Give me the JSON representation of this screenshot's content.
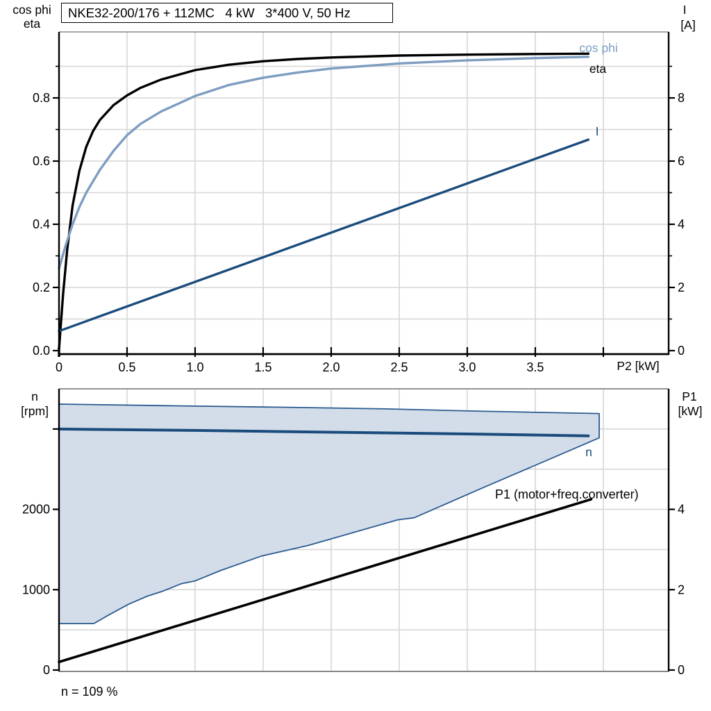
{
  "title": "NKE32-200/176 + 112MC   4 kW   3*400 V, 50 Hz",
  "colors": {
    "eta_line": "#000000",
    "cosphi_line": "#7d9dc1",
    "current_line": "#1b4b7d",
    "speed_line": "#1b4b7d",
    "p1_line": "#000000",
    "area_fill": "#d3dde9",
    "area_border": "#2a5a8f",
    "gridline": "#d6d6d6",
    "frame_gray": "#858585"
  },
  "axis_headers": {
    "top_left_1": "cos phi",
    "top_left_2": "eta",
    "top_right_1": "I",
    "top_right_2": "[A]",
    "bottom_left_1": "n",
    "bottom_left_2": "[rpm]",
    "bottom_right_1": "P1",
    "bottom_right_2": "[kW]"
  },
  "curve_labels": {
    "cosphi": "cos phi",
    "eta": "eta",
    "current": "I",
    "speed": "n",
    "p1": "P1 (motor+freq.converter)"
  },
  "annotation": "n = 109 %",
  "x_axis_title": "P2 [kW]",
  "chart_data": [
    {
      "type": "line",
      "title": "Motor efficiency, power factor and current vs shaft power",
      "x_axis": {
        "label": "P2 [kW]",
        "range": [
          0,
          4.48
        ],
        "ticks": [
          [
            0,
            "0"
          ],
          [
            0.5,
            "0.5"
          ],
          [
            1,
            "1.0"
          ],
          [
            1.5,
            "1.5"
          ],
          [
            2,
            "2.0"
          ],
          [
            2.5,
            "2.5"
          ],
          [
            3,
            "3.0"
          ],
          [
            3.5,
            "3.5"
          ],
          [
            4,
            ""
          ]
        ],
        "gridlines": [
          0.5,
          1,
          1.5,
          2,
          2.5,
          3,
          3.5,
          4
        ]
      },
      "y_left": {
        "label": "cos phi / eta",
        "range": [
          0,
          1.0
        ],
        "ticks": [
          [
            0,
            "0.0"
          ],
          [
            0.2,
            "0.2"
          ],
          [
            0.4,
            "0.4"
          ],
          [
            0.6,
            "0.6"
          ],
          [
            0.8,
            "0.8"
          ]
        ],
        "minor_ticks": [
          0.1,
          0.3,
          0.5,
          0.7,
          0.9
        ],
        "gridlines": [
          0.1,
          0.2,
          0.3,
          0.4,
          0.5,
          0.6,
          0.7,
          0.8,
          0.9
        ]
      },
      "y_right": {
        "label": "I [A]",
        "range": [
          0,
          10
        ],
        "ticks": [
          [
            0,
            "0"
          ],
          [
            2,
            "2"
          ],
          [
            4,
            "4"
          ],
          [
            6,
            "6"
          ],
          [
            8,
            "8"
          ]
        ],
        "minor_ticks": [
          1,
          3,
          5,
          7,
          9
        ]
      },
      "series": [
        {
          "name": "eta",
          "axis": "left",
          "color": "#000000",
          "width": 3.4,
          "points": [
            [
              0,
              0.005
            ],
            [
              0.03,
              0.18
            ],
            [
              0.06,
              0.32
            ],
            [
              0.1,
              0.46
            ],
            [
              0.15,
              0.57
            ],
            [
              0.2,
              0.645
            ],
            [
              0.25,
              0.695
            ],
            [
              0.3,
              0.73
            ],
            [
              0.4,
              0.777
            ],
            [
              0.5,
              0.808
            ],
            [
              0.6,
              0.832
            ],
            [
              0.75,
              0.858
            ],
            [
              1.0,
              0.888
            ],
            [
              1.25,
              0.905
            ],
            [
              1.5,
              0.916
            ],
            [
              1.75,
              0.923
            ],
            [
              2.0,
              0.928
            ],
            [
              2.5,
              0.934
            ],
            [
              3.0,
              0.937
            ],
            [
              3.5,
              0.939
            ],
            [
              3.89,
              0.94
            ]
          ]
        },
        {
          "name": "cos phi",
          "axis": "left",
          "color": "#7d9dc1",
          "width": 3.4,
          "points": [
            [
              0,
              0.26
            ],
            [
              0.05,
              0.335
            ],
            [
              0.1,
              0.4
            ],
            [
              0.15,
              0.455
            ],
            [
              0.2,
              0.5
            ],
            [
              0.3,
              0.572
            ],
            [
              0.4,
              0.632
            ],
            [
              0.5,
              0.682
            ],
            [
              0.6,
              0.718
            ],
            [
              0.75,
              0.757
            ],
            [
              1.0,
              0.806
            ],
            [
              1.25,
              0.841
            ],
            [
              1.5,
              0.864
            ],
            [
              1.75,
              0.88
            ],
            [
              2.0,
              0.893
            ],
            [
              2.5,
              0.909
            ],
            [
              3.0,
              0.919
            ],
            [
              3.5,
              0.926
            ],
            [
              3.89,
              0.93
            ]
          ]
        },
        {
          "name": "I",
          "axis": "right",
          "color": "#1b4b7d",
          "width": 3.4,
          "points": [
            [
              0,
              0.62
            ],
            [
              3.89,
              6.68
            ]
          ]
        }
      ]
    },
    {
      "type": "line+area",
      "title": "Speed range and input power vs shaft power",
      "x_axis": {
        "label": "",
        "range": [
          0,
          4.48
        ],
        "ticks": [],
        "gridlines": [
          0.5,
          1,
          1.5,
          2,
          2.5,
          3,
          3.5,
          4
        ]
      },
      "y_left": {
        "label": "n [rpm]",
        "range": [
          0,
          3500
        ],
        "ticks": [
          [
            0,
            "0"
          ],
          [
            1000,
            "1000"
          ],
          [
            2000,
            "2000"
          ],
          [
            3000,
            ""
          ]
        ],
        "gridlines": [
          500,
          1000,
          1500,
          2000,
          2500,
          3000,
          3500
        ]
      },
      "y_right": {
        "label": "P1 [kW]",
        "range": [
          0,
          7
        ],
        "ticks": [
          [
            0,
            "0"
          ],
          [
            2,
            "2"
          ],
          [
            4,
            "4"
          ]
        ]
      },
      "area": {
        "name": "speed-range-envelope",
        "axis": "left",
        "fill": "#d3dde9",
        "border": "#2a5a8f",
        "border_width": 1.8,
        "points": [
          [
            0,
            3310
          ],
          [
            0.8,
            3290
          ],
          [
            1.6,
            3272
          ],
          [
            2.4,
            3250
          ],
          [
            3.13,
            3220
          ],
          [
            3.97,
            3192
          ],
          [
            3.97,
            2890
          ],
          [
            3.13,
            2280
          ],
          [
            2.61,
            1895
          ],
          [
            2.49,
            1870
          ],
          [
            1.83,
            1550
          ],
          [
            1.49,
            1420
          ],
          [
            1.19,
            1240
          ],
          [
            1.0,
            1110
          ],
          [
            0.9,
            1075
          ],
          [
            0.76,
            980
          ],
          [
            0.65,
            920
          ],
          [
            0.51,
            818
          ],
          [
            0.37,
            690
          ],
          [
            0.255,
            578
          ],
          [
            0,
            578
          ]
        ]
      },
      "series": [
        {
          "name": "n",
          "axis": "left",
          "color": "#1b4b7d",
          "width": 4,
          "points": [
            [
              0,
              3000
            ],
            [
              1,
              2982
            ],
            [
              2,
              2960
            ],
            [
              3,
              2938
            ],
            [
              3.89,
              2915
            ]
          ]
        },
        {
          "name": "P1 (motor+freq.converter)",
          "axis": "right",
          "color": "#000000",
          "width": 3.6,
          "points": [
            [
              0,
              0.2
            ],
            [
              3.91,
              4.25
            ]
          ]
        }
      ],
      "annotation": "n = 109 %"
    }
  ]
}
